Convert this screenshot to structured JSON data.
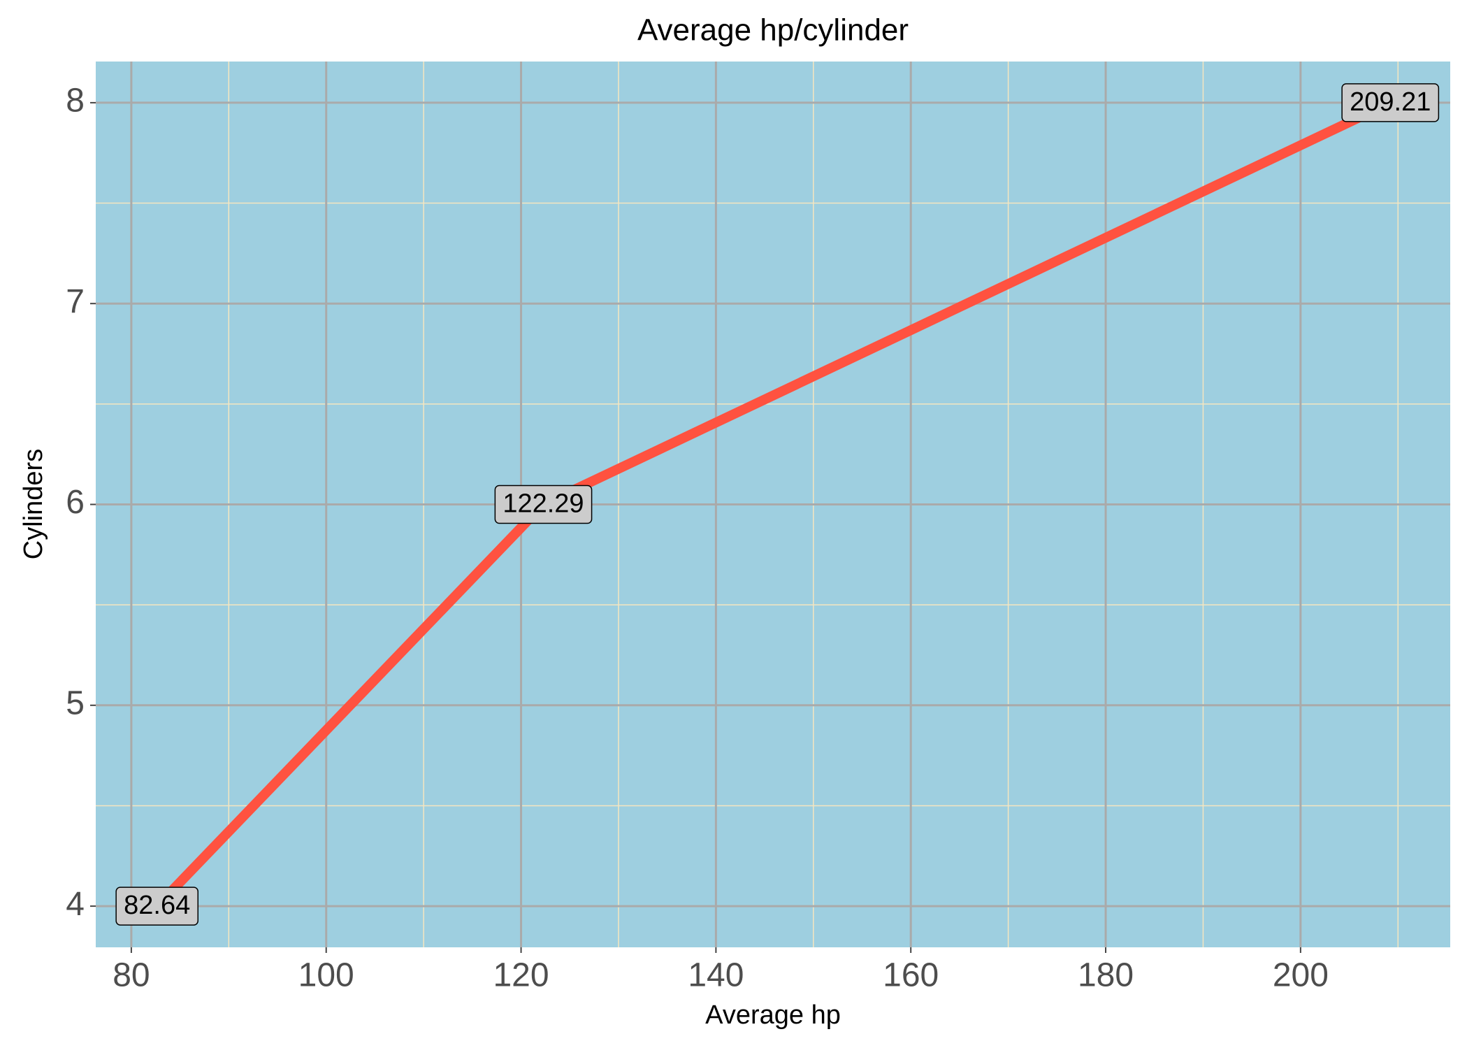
{
  "chart_data": {
    "type": "line",
    "title": "Average hp/cylinder",
    "x_label": "Average hp",
    "y_label": "Cylinders",
    "x": [
      82.64,
      122.29,
      209.21
    ],
    "values": [
      4,
      6,
      8
    ],
    "color": "#ff5240",
    "xlim": [
      76.35,
      215.36
    ],
    "ylim": [
      3.795,
      8.205
    ],
    "xticks": [
      80,
      100,
      120,
      140,
      160,
      180,
      200
    ],
    "yticks": [
      4,
      5,
      6,
      7,
      8
    ],
    "x_minor_ticks": [
      90,
      110,
      130,
      150,
      170,
      190,
      210
    ],
    "y_minor_ticks": [
      4.5,
      5.5,
      6.5,
      7.5
    ],
    "grid": true,
    "panel_color": "#9ecfe0"
  }
}
